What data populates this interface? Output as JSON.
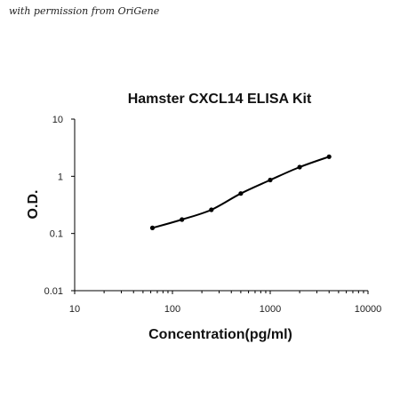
{
  "watermark": "with permission from OriGene",
  "chart_data": {
    "type": "line",
    "title": "Hamster CXCL14 ELISA Kit",
    "xlabel": "Concentration(pg/ml)",
    "ylabel": "O.D.",
    "xscale": "log",
    "yscale": "log",
    "xlim": [
      10,
      10000
    ],
    "ylim": [
      0.01,
      10
    ],
    "x_tick_labels": [
      "10",
      "100",
      "1000",
      "10000"
    ],
    "y_tick_labels": [
      "0.01",
      "0.1",
      "1",
      "10"
    ],
    "grid": false,
    "legend": "none",
    "series": [
      {
        "x": [
          62.5,
          125,
          250,
          500,
          1000,
          2000,
          4000
        ],
        "y": [
          0.125,
          0.175,
          0.26,
          0.5,
          0.86,
          1.45,
          2.2
        ]
      }
    ],
    "line_color": "#000000"
  }
}
